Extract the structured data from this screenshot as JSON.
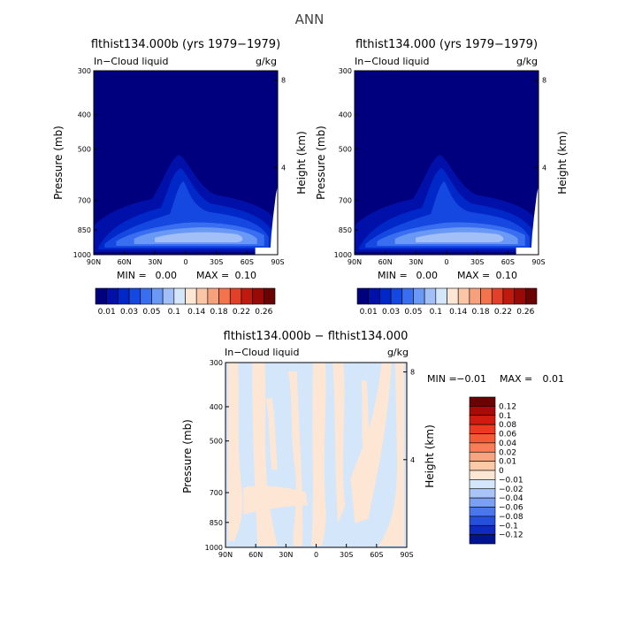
{
  "main_title": "ANN",
  "chart_data": [
    {
      "type": "heatmap",
      "title": "flthist134.000b (yrs 1979−1979)",
      "variable": "In−Cloud liquid",
      "units": "g/kg",
      "ylabel": "Pressure (mb)",
      "ylabel_right": "Height (km)",
      "x_ticks": [
        "90N",
        "60N",
        "30N",
        "0",
        "30S",
        "60S",
        "90S"
      ],
      "y_ticks": [
        "300",
        "400",
        "500",
        "700",
        "850",
        "1000"
      ],
      "height_ticks": [
        "8",
        "4"
      ],
      "stats": {
        "min_label": "MIN =",
        "min": "0.00",
        "max_label": "MAX =",
        "max": "0.10"
      },
      "levels": [
        "0.01",
        "0.03",
        "0.05",
        "0.1",
        "0.14",
        "0.18",
        "0.22",
        "0.26"
      ],
      "colors": [
        "#00007f",
        "#0010a8",
        "#0028c8",
        "#1448e0",
        "#3a6ef0",
        "#6a98f5",
        "#a2bff8",
        "#d4e6fa",
        "#fde6d4",
        "#fbc6a6",
        "#f7a07c",
        "#f2734c",
        "#e24028",
        "#c01a0e",
        "#980a06",
        "#6a0404"
      ]
    },
    {
      "type": "heatmap",
      "title": "flthist134.000 (yrs 1979−1979)",
      "variable": "In−Cloud liquid",
      "units": "g/kg",
      "ylabel": "Pressure (mb)",
      "ylabel_right": "Height (km)",
      "x_ticks": [
        "90N",
        "60N",
        "30N",
        "0",
        "30S",
        "60S",
        "90S"
      ],
      "y_ticks": [
        "300",
        "400",
        "500",
        "700",
        "850",
        "1000"
      ],
      "height_ticks": [
        "8",
        "4"
      ],
      "stats": {
        "min_label": "MIN =",
        "min": "0.00",
        "max_label": "MAX =",
        "max": "0.10"
      },
      "levels": [
        "0.01",
        "0.03",
        "0.05",
        "0.1",
        "0.14",
        "0.18",
        "0.22",
        "0.26"
      ],
      "colors": [
        "#00007f",
        "#0010a8",
        "#0028c8",
        "#1448e0",
        "#3a6ef0",
        "#6a98f5",
        "#a2bff8",
        "#d4e6fa",
        "#fde6d4",
        "#fbc6a6",
        "#f7a07c",
        "#f2734c",
        "#e24028",
        "#c01a0e",
        "#980a06",
        "#6a0404"
      ]
    },
    {
      "type": "heatmap",
      "title": "flthist134.000b − flthist134.000",
      "variable": "In−Cloud liquid",
      "units": "g/kg",
      "ylabel": "Pressure (mb)",
      "ylabel_right": "Height (km)",
      "x_ticks": [
        "90N",
        "60N",
        "30N",
        "0",
        "30S",
        "60S",
        "90S"
      ],
      "y_ticks": [
        "300",
        "400",
        "500",
        "700",
        "850",
        "1000"
      ],
      "height_ticks": [
        "8",
        "4"
      ],
      "stats": {
        "min_label": "MIN =",
        "min": "−0.01",
        "max_label": "MAX =",
        "max": "0.01"
      },
      "levels": [
        "0.12",
        "0.1",
        "0.08",
        "0.06",
        "0.04",
        "0.02",
        "0.01",
        "0",
        "−0.01",
        "−0.02",
        "−0.04",
        "−0.06",
        "−0.08",
        "−0.1",
        "−0.12"
      ],
      "colors": [
        "#6a0404",
        "#a80a06",
        "#d01c10",
        "#ea3a22",
        "#f45a36",
        "#f77e56",
        "#f9a480",
        "#fbcaa8",
        "#fde6d4",
        "#d4e6fa",
        "#a8c4f8",
        "#7aa0f4",
        "#4a78ec",
        "#2450dc",
        "#0c2cc0",
        "#001490"
      ]
    }
  ]
}
